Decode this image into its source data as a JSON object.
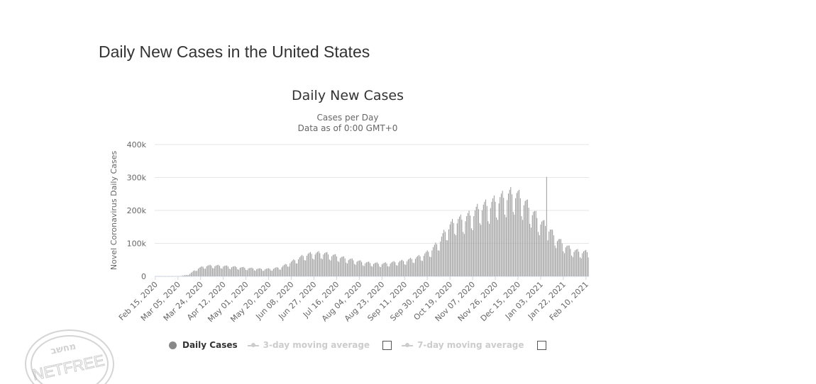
{
  "page": {
    "title": "Daily New Cases in the United States"
  },
  "chart_data": {
    "type": "bar",
    "title": "Daily New Cases",
    "subtitle_line1": "Cases per Day",
    "subtitle_line2": "Data as of 0:00 GMT+0",
    "ylabel": "Novel Coronavirus Daily Cases",
    "ylim": [
      0,
      400000
    ],
    "yticks": [
      0,
      100000,
      200000,
      300000,
      400000
    ],
    "ytick_labels": [
      "0",
      "100k",
      "200k",
      "300k",
      "400k"
    ],
    "xtick_labels": [
      "Feb 15, 2020",
      "Mar 05, 2020",
      "Mar 24, 2020",
      "Apr 12, 2020",
      "May 01, 2020",
      "May 20, 2020",
      "Jun 08, 2020",
      "Jun 27, 2020",
      "Jul 16, 2020",
      "Aug 04, 2020",
      "Aug 23, 2020",
      "Sep 11, 2020",
      "Sep 30, 2020",
      "Oct 19, 2020",
      "Nov 07, 2020",
      "Nov 26, 2020",
      "Dec 15, 2020",
      "Jan 03, 2021",
      "Jan 22, 2021",
      "Feb 10, 2021"
    ],
    "start_date": "2020-02-15",
    "grid": true,
    "color": "#888888",
    "weekly_values": [
      100,
      100,
      200,
      800,
      5000,
      22000,
      30000,
      31000,
      30000,
      28000,
      26000,
      24000,
      22000,
      21000,
      22000,
      26000,
      38000,
      50000,
      62000,
      66000,
      67000,
      62000,
      56000,
      50000,
      45000,
      40000,
      38000,
      36000,
      38000,
      42000,
      45000,
      52000,
      60000,
      75000,
      100000,
      140000,
      160000,
      165000,
      180000,
      200000,
      205000,
      220000,
      230000,
      240000,
      220000,
      190000,
      160000,
      140000,
      110000,
      90000,
      75000,
      70000
    ]
  },
  "legend": {
    "daily": "Daily Cases",
    "avg3": "3-day moving average",
    "avg7": "7-day moving average"
  },
  "watermark": {
    "top": "מחשב",
    "bottom": "NETFREE"
  }
}
